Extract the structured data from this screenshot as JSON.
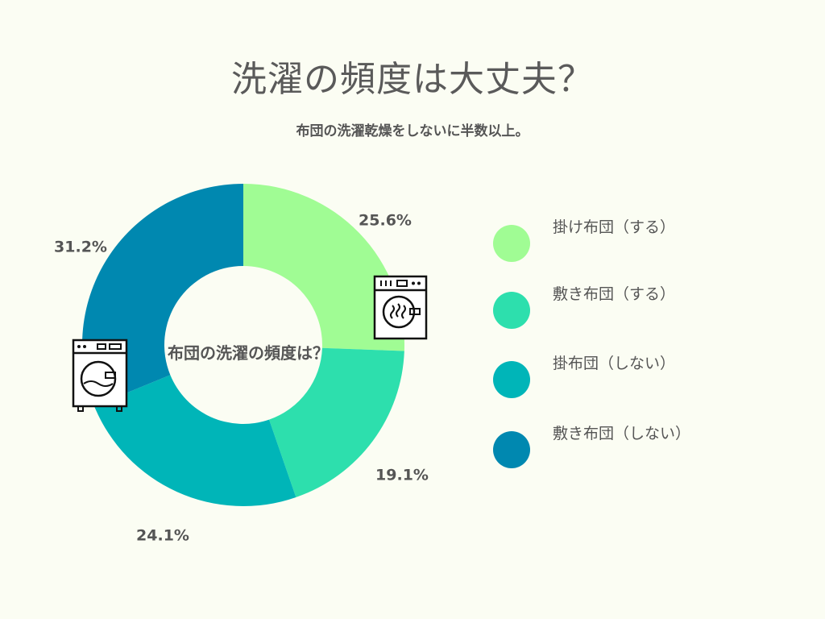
{
  "title": "洗濯の頻度は大丈夫？",
  "subtitle": "布団の洗濯乾燥をしないに半数以上。",
  "chart_data": {
    "type": "pie",
    "donut": true,
    "center_label": "布団の洗濯の頻度は？",
    "categories": [
      "掛け布団（する）",
      "敷き布団（する）",
      "掛布団（しない）",
      "敷き布団（しない）"
    ],
    "values": [
      25.6,
      19.1,
      24.1,
      31.2
    ],
    "value_labels": [
      "25.6%",
      "19.1%",
      "24.1%",
      "31.2%"
    ],
    "colors": [
      "#a0fc94",
      "#2ddfad",
      "#00b5b8",
      "#0088b0"
    ],
    "legend_position": "right",
    "start_angle_deg": 0,
    "direction": "clockwise"
  },
  "icons": [
    "washing-machine-icon",
    "washing-machine-icon"
  ]
}
